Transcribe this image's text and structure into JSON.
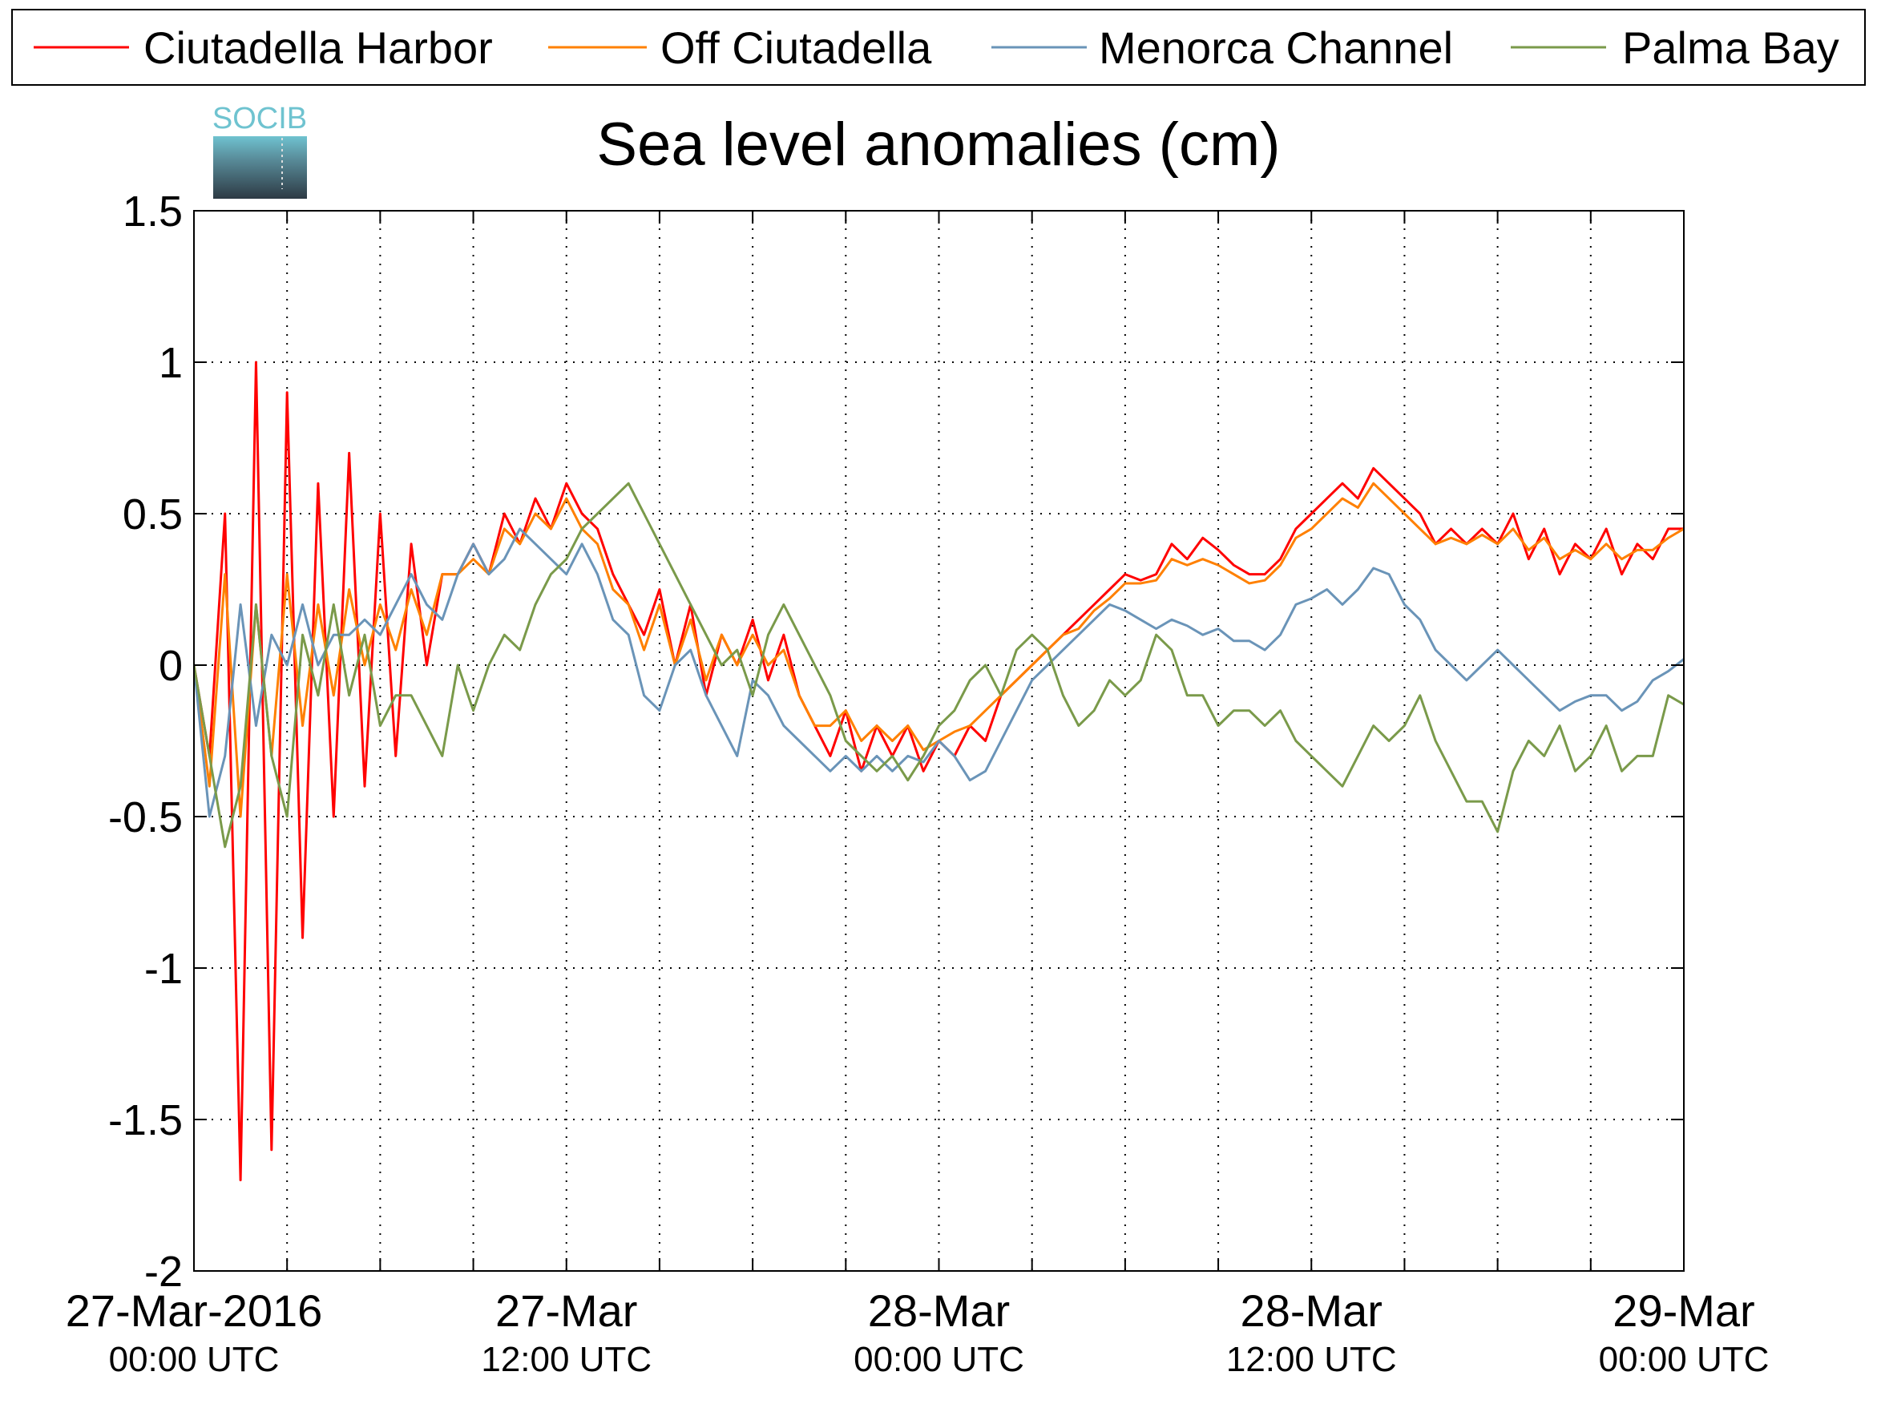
{
  "chart_data": {
    "type": "line",
    "title": "Sea level anomalies (cm)",
    "logo_text": "SOCIB",
    "x": [
      0,
      0.5,
      1,
      1.5,
      2,
      2.5,
      3,
      3.5,
      4,
      4.5,
      5,
      5.5,
      6,
      6.5,
      7,
      7.5,
      8,
      8.5,
      9,
      9.5,
      10,
      10.5,
      11,
      11.5,
      12,
      12.5,
      13,
      13.5,
      14,
      14.5,
      15,
      15.5,
      16,
      16.5,
      17,
      17.5,
      18,
      18.5,
      19,
      19.5,
      20,
      20.5,
      21,
      21.5,
      22,
      22.5,
      23,
      23.5,
      24,
      24.5,
      25,
      25.5,
      26,
      26.5,
      27,
      27.5,
      28,
      28.5,
      29,
      29.5,
      30,
      30.5,
      31,
      31.5,
      32,
      32.5,
      33,
      33.5,
      34,
      34.5,
      35,
      35.5,
      36,
      36.5,
      37,
      37.5,
      38,
      38.5,
      39,
      39.5,
      40,
      40.5,
      41,
      41.5,
      42,
      42.5,
      43,
      43.5,
      44,
      44.5,
      45,
      45.5,
      46,
      46.5,
      47,
      47.5,
      48
    ],
    "series": [
      {
        "name": "Ciutadella Harbor",
        "color": "#ff0000",
        "values": [
          0,
          -0.3,
          0.5,
          -1.7,
          1.0,
          -1.6,
          0.9,
          -0.9,
          0.6,
          -0.5,
          0.7,
          -0.4,
          0.5,
          -0.3,
          0.4,
          0,
          0.3,
          0.3,
          0.4,
          0.3,
          0.5,
          0.4,
          0.55,
          0.45,
          0.6,
          0.5,
          0.45,
          0.3,
          0.2,
          0.1,
          0.25,
          0,
          0.2,
          -0.1,
          0.1,
          0,
          0.15,
          -0.05,
          0.1,
          -0.1,
          -0.2,
          -0.3,
          -0.15,
          -0.35,
          -0.2,
          -0.3,
          -0.2,
          -0.35,
          -0.25,
          -0.3,
          -0.2,
          -0.25,
          -0.1,
          -0.05,
          0,
          0.05,
          0.1,
          0.15,
          0.2,
          0.25,
          0.3,
          0.28,
          0.3,
          0.4,
          0.35,
          0.42,
          0.38,
          0.33,
          0.3,
          0.3,
          0.35,
          0.45,
          0.5,
          0.55,
          0.6,
          0.55,
          0.65,
          0.6,
          0.55,
          0.5,
          0.4,
          0.45,
          0.4,
          0.45,
          0.4,
          0.5,
          0.35,
          0.45,
          0.3,
          0.4,
          0.35,
          0.45,
          0.3,
          0.4,
          0.35,
          0.45,
          0.45
        ]
      },
      {
        "name": "Off Ciutadella",
        "color": "#ff8000",
        "values": [
          0,
          -0.4,
          0.3,
          -0.5,
          0.2,
          -0.3,
          0.3,
          -0.2,
          0.2,
          -0.1,
          0.25,
          0,
          0.2,
          0.05,
          0.25,
          0.1,
          0.3,
          0.3,
          0.35,
          0.3,
          0.45,
          0.4,
          0.5,
          0.45,
          0.55,
          0.45,
          0.4,
          0.25,
          0.2,
          0.05,
          0.2,
          0,
          0.15,
          -0.05,
          0.1,
          0,
          0.1,
          0,
          0.05,
          -0.1,
          -0.2,
          -0.2,
          -0.15,
          -0.25,
          -0.2,
          -0.25,
          -0.2,
          -0.28,
          -0.25,
          -0.22,
          -0.2,
          -0.15,
          -0.1,
          -0.05,
          0,
          0.05,
          0.1,
          0.12,
          0.18,
          0.22,
          0.27,
          0.27,
          0.28,
          0.35,
          0.33,
          0.35,
          0.33,
          0.3,
          0.27,
          0.28,
          0.33,
          0.42,
          0.45,
          0.5,
          0.55,
          0.52,
          0.6,
          0.55,
          0.5,
          0.45,
          0.4,
          0.42,
          0.4,
          0.43,
          0.4,
          0.45,
          0.38,
          0.42,
          0.35,
          0.38,
          0.35,
          0.4,
          0.35,
          0.38,
          0.38,
          0.42,
          0.45
        ]
      },
      {
        "name": "Menorca Channel",
        "color": "#6a94b8",
        "values": [
          0,
          -0.5,
          -0.3,
          0.2,
          -0.2,
          0.1,
          0,
          0.2,
          0,
          0.1,
          0.1,
          0.15,
          0.1,
          0.2,
          0.3,
          0.2,
          0.15,
          0.3,
          0.4,
          0.3,
          0.35,
          0.45,
          0.4,
          0.35,
          0.3,
          0.4,
          0.3,
          0.15,
          0.1,
          -0.1,
          -0.15,
          0,
          0.05,
          -0.1,
          -0.2,
          -0.3,
          -0.05,
          -0.1,
          -0.2,
          -0.25,
          -0.3,
          -0.35,
          -0.3,
          -0.35,
          -0.3,
          -0.35,
          -0.3,
          -0.32,
          -0.25,
          -0.3,
          -0.38,
          -0.35,
          -0.25,
          -0.15,
          -0.05,
          0,
          0.05,
          0.1,
          0.15,
          0.2,
          0.18,
          0.15,
          0.12,
          0.15,
          0.13,
          0.1,
          0.12,
          0.08,
          0.08,
          0.05,
          0.1,
          0.2,
          0.22,
          0.25,
          0.2,
          0.25,
          0.32,
          0.3,
          0.2,
          0.15,
          0.05,
          0,
          -0.05,
          0,
          0.05,
          0,
          -0.05,
          -0.1,
          -0.15,
          -0.12,
          -0.1,
          -0.1,
          -0.15,
          -0.12,
          -0.05,
          -0.02,
          0.02
        ]
      },
      {
        "name": "Palma Bay",
        "color": "#7a9a4a",
        "values": [
          0,
          -0.3,
          -0.6,
          -0.4,
          0.2,
          -0.3,
          -0.5,
          0.1,
          -0.1,
          0.2,
          -0.1,
          0.1,
          -0.2,
          -0.1,
          -0.1,
          -0.2,
          -0.3,
          0,
          -0.15,
          0,
          0.1,
          0.05,
          0.2,
          0.3,
          0.35,
          0.45,
          0.5,
          0.55,
          0.6,
          0.5,
          0.4,
          0.3,
          0.2,
          0.1,
          0,
          0.05,
          -0.1,
          0.1,
          0.2,
          0.1,
          0,
          -0.1,
          -0.25,
          -0.3,
          -0.35,
          -0.3,
          -0.38,
          -0.3,
          -0.2,
          -0.15,
          -0.05,
          0,
          -0.1,
          0.05,
          0.1,
          0.05,
          -0.1,
          -0.2,
          -0.15,
          -0.05,
          -0.1,
          -0.05,
          0.1,
          0.05,
          -0.1,
          -0.1,
          -0.2,
          -0.15,
          -0.15,
          -0.2,
          -0.15,
          -0.25,
          -0.3,
          -0.35,
          -0.4,
          -0.3,
          -0.2,
          -0.25,
          -0.2,
          -0.1,
          -0.25,
          -0.35,
          -0.45,
          -0.45,
          -0.55,
          -0.35,
          -0.25,
          -0.3,
          -0.2,
          -0.35,
          -0.3,
          -0.2,
          -0.35,
          -0.3,
          -0.3,
          -0.1,
          -0.13
        ]
      }
    ],
    "xlim": [
      0,
      48
    ],
    "xticks": [
      {
        "value": 0,
        "label": "27-Mar-2016",
        "sublabel": "00:00 UTC"
      },
      {
        "value": 12,
        "label": "27-Mar",
        "sublabel": "12:00 UTC"
      },
      {
        "value": 24,
        "label": "28-Mar",
        "sublabel": "00:00 UTC"
      },
      {
        "value": 36,
        "label": "28-Mar",
        "sublabel": "12:00 UTC"
      },
      {
        "value": 48,
        "label": "29-Mar",
        "sublabel": "00:00 UTC"
      }
    ],
    "xminorticks": [
      3,
      6,
      9,
      15,
      18,
      21,
      27,
      30,
      33,
      39,
      42,
      45
    ],
    "ylim": [
      -2,
      1.5
    ],
    "yticks": [
      -2,
      -1.5,
      -1,
      -0.5,
      0,
      0.5,
      1,
      1.5
    ],
    "grid": true,
    "legend": "top"
  }
}
